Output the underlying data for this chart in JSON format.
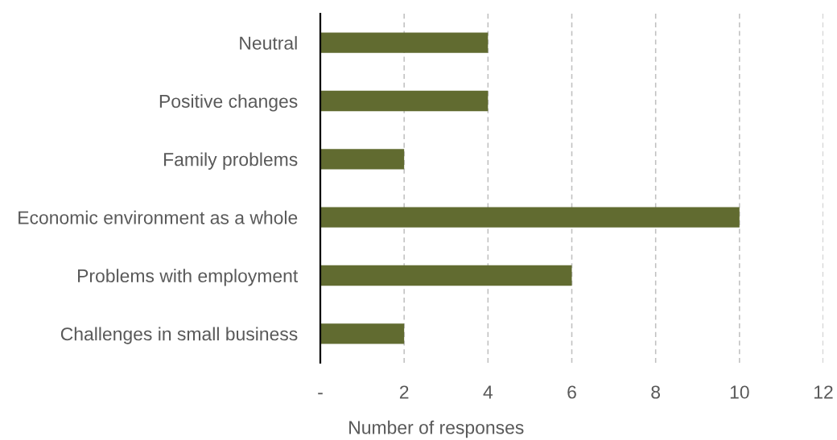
{
  "chart_data": {
    "type": "bar",
    "orientation": "horizontal",
    "categories": [
      "Neutral",
      "Positive changes",
      "Family problems",
      "Economic environment as a whole",
      "Problems with employment",
      "Challenges in small business"
    ],
    "values": [
      4,
      4,
      2,
      10,
      6,
      2
    ],
    "color": "#616b30",
    "xlabel": "Number of responses",
    "xlim": [
      0,
      12
    ],
    "xticks": [
      {
        "value": 0,
        "label": "-"
      },
      2,
      4,
      6,
      8,
      10,
      12
    ],
    "grid": "x"
  }
}
